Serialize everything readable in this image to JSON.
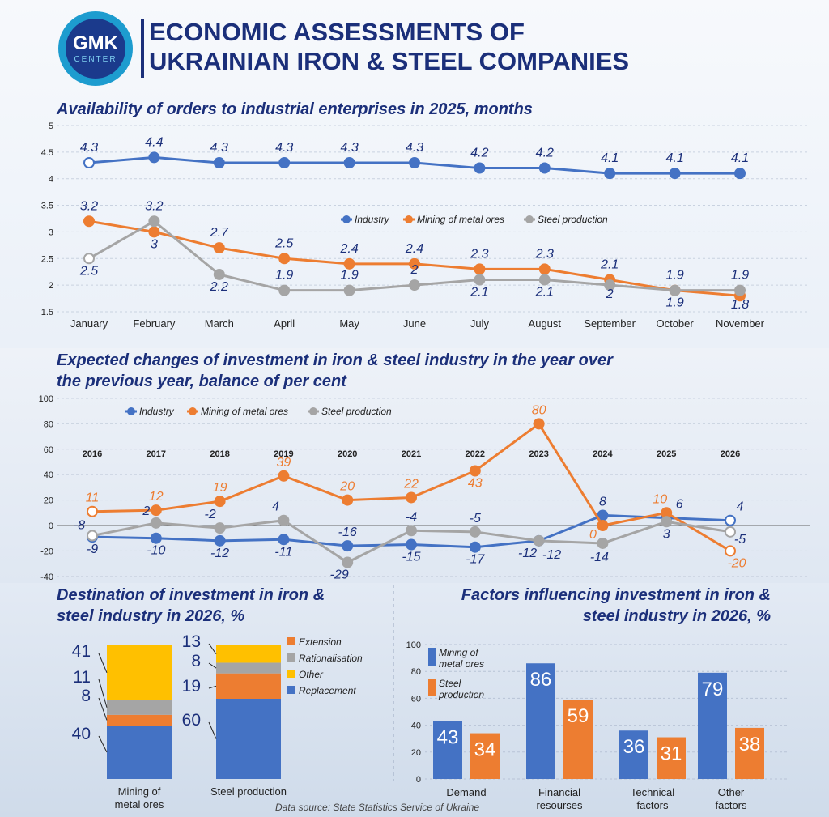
{
  "header": {
    "logo_text": "GMK",
    "logo_sub": "CENTER",
    "title_line1": "ECONOMIC ASSESSMENTS OF",
    "title_line2": "UKRAINIAN IRON & STEEL COMPANIES"
  },
  "colors": {
    "industry": "#4472c4",
    "mining": "#ed7d31",
    "steel": "#a5a5a5",
    "navy": "#1b2f7a"
  },
  "source": "Data source: State Statistics Service of Ukraine",
  "chart_data": [
    {
      "type": "line",
      "title": "Availability of orders to industrial enterprises in 2025, months",
      "categories": [
        "January",
        "February",
        "March",
        "April",
        "May",
        "June",
        "July",
        "August",
        "September",
        "October",
        "November"
      ],
      "ylim": [
        1.5,
        5
      ],
      "yticks": [
        "5",
        "4.5",
        "4",
        "3.5",
        "3",
        "2.5",
        "2",
        "1.5"
      ],
      "legend_position": "middle-right",
      "series": [
        {
          "name": "Industry",
          "values": [
            4.3,
            4.4,
            4.3,
            4.3,
            4.3,
            4.3,
            4.2,
            4.2,
            4.1,
            4.1,
            4.1
          ],
          "labels": [
            "4.3",
            "4.4",
            "4.3",
            "4.3",
            "4.3",
            "4.3",
            "4.2",
            "4.2",
            "4.1",
            "4.1",
            "4.1"
          ]
        },
        {
          "name": "Mining of metal ores",
          "values": [
            3.2,
            3,
            2.7,
            2.5,
            2.4,
            2.4,
            2.3,
            2.3,
            2.1,
            1.9,
            1.8
          ],
          "labels": [
            "3.2",
            "3",
            "2.7",
            "2.5",
            "2.4",
            "2.4",
            "2.3",
            "2.3",
            "2.1",
            "1.9",
            "1.8"
          ]
        },
        {
          "name": "Steel production",
          "values": [
            2.5,
            3.2,
            2.2,
            1.9,
            1.9,
            2,
            2.1,
            2.1,
            2,
            1.9,
            1.9
          ],
          "labels": [
            "2.5",
            "3.2",
            "2.2",
            "1.9",
            "1.9",
            "2",
            "2.1",
            "2.1",
            "2",
            "1.9",
            "1.9"
          ]
        }
      ]
    },
    {
      "type": "line",
      "title_line1": "Expected changes of investment in iron & steel industry in the year over",
      "title_line2": "the previous year, balance of per cent",
      "categories": [
        "2016",
        "2017",
        "2018",
        "2019",
        "2020",
        "2021",
        "2022",
        "2023",
        "2024",
        "2025",
        "2026"
      ],
      "ylim": [
        -40,
        100
      ],
      "yticks": [
        "100",
        "80",
        "60",
        "40",
        "20",
        "0",
        "-20",
        "-40"
      ],
      "legend_position": "top-left",
      "series": [
        {
          "name": "Industry",
          "values": [
            -9,
            -10,
            -12,
            -11,
            -16,
            -15,
            -17,
            -12,
            8,
            6,
            4
          ],
          "labels": [
            "-9",
            "-10",
            "-12",
            "-11",
            "-16",
            "-15",
            "-17",
            "-12",
            "8",
            "6",
            "4"
          ]
        },
        {
          "name": "Mining of metal ores",
          "values": [
            11,
            12,
            19,
            39,
            20,
            22,
            43,
            80,
            0,
            10,
            -20
          ],
          "labels": [
            "11",
            "12",
            "19",
            "39",
            "20",
            "22",
            "43",
            "80",
            "0",
            "10",
            "-20"
          ]
        },
        {
          "name": "Steel production",
          "values": [
            -8,
            2,
            -2,
            4,
            -29,
            -4,
            -5,
            -12,
            -14,
            3,
            -5
          ],
          "labels": [
            "-8",
            "2",
            "-2",
            "4",
            "-29",
            "-4",
            "-5",
            "-12",
            "-14",
            "3",
            "-5"
          ]
        }
      ]
    },
    {
      "type": "bar",
      "stacked": true,
      "title_line1": "Destination of investment in iron &",
      "title_line2": "steel industry in 2026, %",
      "categories": [
        "Mining of metal ores",
        "Steel production"
      ],
      "category_lines": [
        [
          "Mining of",
          "metal ores"
        ],
        [
          "Steel production"
        ]
      ],
      "legend_position": "right",
      "series": [
        {
          "name": "Replacement",
          "values": [
            40,
            60
          ],
          "labels": [
            "40",
            "60"
          ]
        },
        {
          "name": "Extension",
          "values": [
            8,
            19
          ],
          "labels": [
            "8",
            "19"
          ]
        },
        {
          "name": "Rationalisation",
          "values": [
            11,
            8
          ],
          "labels": [
            "11",
            "8"
          ]
        },
        {
          "name": "Other",
          "values": [
            41,
            13
          ],
          "labels": [
            "41",
            "13"
          ]
        }
      ],
      "legend_order": [
        "Extension",
        "Rationalisation",
        "Other",
        "Replacement"
      ]
    },
    {
      "type": "bar",
      "title_line1": "Factors influencing investment in iron &",
      "title_line2": "steel industry in 2026, %",
      "categories": [
        "Demand",
        "Financial resourses",
        "Technical factors",
        "Other factors"
      ],
      "category_lines": [
        [
          "Demand"
        ],
        [
          "Financial",
          "resourses"
        ],
        [
          "Technical",
          "factors"
        ],
        [
          "Other",
          "factors"
        ]
      ],
      "ylim": [
        0,
        100
      ],
      "yticks": [
        "100",
        "80",
        "60",
        "40",
        "20",
        "0"
      ],
      "legend_position": "top-left",
      "series": [
        {
          "name_lines": [
            "Mining of",
            "metal ores"
          ],
          "values": [
            43,
            86,
            36,
            79
          ],
          "labels": [
            "43",
            "86",
            "36",
            "79"
          ]
        },
        {
          "name_lines": [
            "Steel",
            "production"
          ],
          "values": [
            34,
            59,
            31,
            38
          ],
          "labels": [
            "34",
            "59",
            "31",
            "38"
          ]
        }
      ]
    }
  ]
}
